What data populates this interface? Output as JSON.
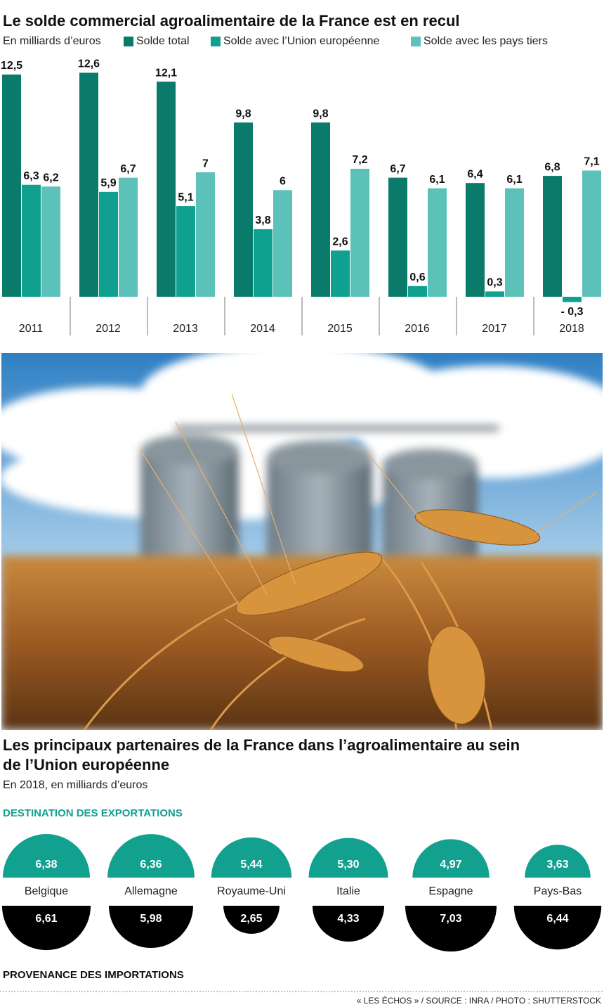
{
  "chart_data": [
    {
      "type": "bar",
      "title": "Le solde commercial agroalimentaire de la France est en recul",
      "subtitle": "En milliards d’euros",
      "categories": [
        "2011",
        "2012",
        "2013",
        "2014",
        "2015",
        "2016",
        "2017",
        "2018"
      ],
      "series": [
        {
          "name": "Solde total",
          "color": "#0a7a6b",
          "values": [
            12.5,
            12.6,
            12.1,
            9.8,
            9.8,
            6.7,
            6.4,
            6.8
          ],
          "value_labels": [
            "12,5",
            "12,6",
            "12,1",
            "9,8",
            "9,8",
            "6,7",
            "6,4",
            "6,8"
          ]
        },
        {
          "name": "Solde avec l’Union européenne",
          "color": "#10a090",
          "values": [
            6.3,
            5.9,
            5.1,
            3.8,
            2.6,
            0.6,
            0.3,
            -0.3
          ],
          "value_labels": [
            "6,3",
            "5,9",
            "5,1",
            "3,8",
            "2,6",
            "0,6",
            "0,3",
            "- 0,3"
          ]
        },
        {
          "name": "Solde avec les pays tiers",
          "color": "#5cc1b9",
          "values": [
            6.2,
            6.7,
            7,
            6,
            7.2,
            6.1,
            6.1,
            7.1
          ],
          "value_labels": [
            "6,2",
            "6,7",
            "7",
            "6",
            "7,2",
            "6,1",
            "6,1",
            "7,1"
          ]
        }
      ]
    },
    {
      "type": "semicircle",
      "title": "Les principaux partenaires de la France dans l’agroalimentaire au sein de l’Union européenne",
      "subtitle": "En 2018, en milliards d’euros",
      "categories": [
        "Belgique",
        "Allemagne",
        "Royaume-Uni",
        "Italie",
        "Espagne",
        "Pays-Bas"
      ],
      "series": [
        {
          "name": "DESTINATION DES EXPORTATIONS",
          "color": "#12a08f",
          "values": [
            6.38,
            6.36,
            5.44,
            5.3,
            4.97,
            3.63
          ],
          "value_labels": [
            "6,38",
            "6,36",
            "5,44",
            "5,30",
            "4,97",
            "3,63"
          ]
        },
        {
          "name": "PROVENANCE DES IMPORTATIONS",
          "color": "#000000",
          "values": [
            6.61,
            5.98,
            2.65,
            4.33,
            7.03,
            6.44
          ],
          "value_labels": [
            "6,61",
            "5,98",
            "2,65",
            "4,33",
            "7,03",
            "6,44"
          ]
        }
      ]
    }
  ],
  "source": "« LES ÉCHOS » / SOURCE : INRA / PHOTO : SHUTTERSTOCK"
}
